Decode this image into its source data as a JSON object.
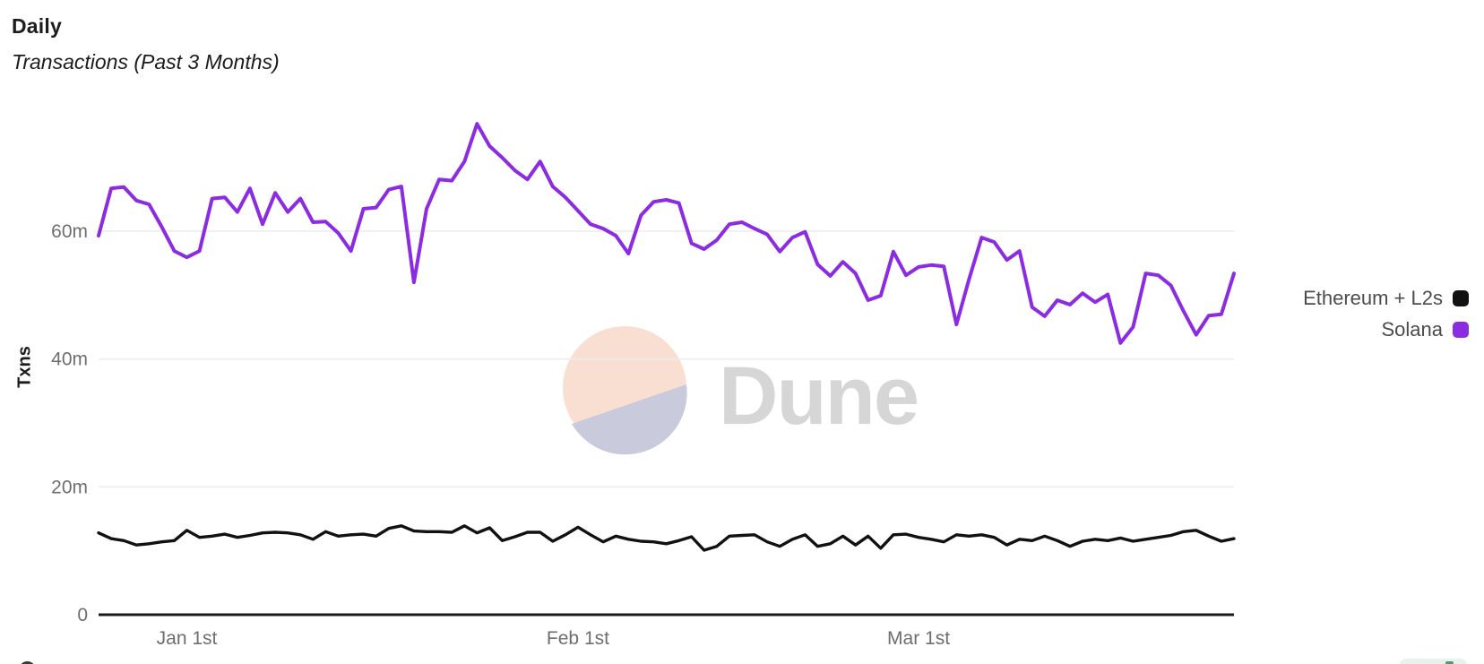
{
  "header": {
    "title": "Daily",
    "subtitle": "Transactions (Past 3 Months)"
  },
  "watermark": {
    "text": "Dune"
  },
  "legend": {
    "items": [
      {
        "label": "Ethereum + L2s",
        "color": "#111111"
      },
      {
        "label": "Solana",
        "color": "#8b2be2"
      }
    ]
  },
  "colors": {
    "grid": "#ececee",
    "axis_baseline": "#1a1a1a",
    "tick_text": "#6e6e6e",
    "watermark_text": "#d6d6d6",
    "watermark_peach": "#f9ded2",
    "watermark_lavender": "#c9cbdc",
    "badge_green_bg": "#e7f2ec",
    "badge_green_glyph": "#47a06b"
  },
  "chart_data": {
    "type": "line",
    "title": "Daily",
    "subtitle": "Transactions (Past 3 Months)",
    "ylabel": "Txns",
    "unit": "millions of daily transactions",
    "ylim": [
      0,
      80
    ],
    "grid": "horizontal",
    "legend_position": "right",
    "y_ticks": [
      {
        "value": 0,
        "label": "0"
      },
      {
        "value": 20,
        "label": "20m"
      },
      {
        "value": 40,
        "label": "40m"
      },
      {
        "value": 60,
        "label": "60m"
      }
    ],
    "x_ticks": [
      {
        "index": 7,
        "label": "Jan 1st"
      },
      {
        "index": 38,
        "label": "Feb 1st"
      },
      {
        "index": 65,
        "label": "Mar 1st"
      }
    ],
    "series": [
      {
        "name": "Ethereum + L2s",
        "color": "#111111",
        "values": [
          12.8,
          11.9,
          11.6,
          10.9,
          11.1,
          11.4,
          11.6,
          13.2,
          12.1,
          12.3,
          12.6,
          12.1,
          12.4,
          12.8,
          12.9,
          12.8,
          12.5,
          11.8,
          13.0,
          12.3,
          12.5,
          12.6,
          12.3,
          13.5,
          13.9,
          13.1,
          13.0,
          13.0,
          12.9,
          13.9,
          12.8,
          13.6,
          11.6,
          12.2,
          12.9,
          12.9,
          11.5,
          12.5,
          13.7,
          12.5,
          11.4,
          12.3,
          11.8,
          11.5,
          11.4,
          11.1,
          11.6,
          12.2,
          10.1,
          10.7,
          12.3,
          12.4,
          12.5,
          11.4,
          10.7,
          11.8,
          12.5,
          10.7,
          11.1,
          12.3,
          10.9,
          12.3,
          10.4,
          12.5,
          12.6,
          12.1,
          11.8,
          11.4,
          12.5,
          12.3,
          12.5,
          12.1,
          10.9,
          11.8,
          11.6,
          12.3,
          11.6,
          10.7,
          11.5,
          11.8,
          11.6,
          12.0,
          11.5,
          11.8,
          12.1,
          12.4,
          13.0,
          13.2,
          12.3,
          11.5,
          11.9
        ]
      },
      {
        "name": "Solana",
        "color": "#8b2be2",
        "values": [
          59.3,
          66.7,
          66.9,
          64.8,
          64.2,
          60.7,
          56.9,
          55.9,
          56.9,
          65.1,
          65.3,
          63.0,
          66.7,
          61.1,
          66.0,
          63.0,
          65.1,
          61.4,
          61.5,
          59.7,
          56.9,
          63.5,
          63.7,
          66.5,
          67.0,
          52.0,
          63.5,
          68.1,
          67.9,
          70.9,
          76.8,
          73.3,
          71.5,
          69.5,
          68.1,
          70.9,
          67.0,
          65.3,
          63.2,
          61.1,
          60.4,
          59.3,
          56.5,
          62.5,
          64.6,
          64.9,
          64.4,
          58.1,
          57.2,
          58.6,
          61.1,
          61.4,
          60.4,
          59.5,
          56.8,
          59.0,
          59.9,
          54.8,
          53.0,
          55.2,
          53.4,
          49.2,
          49.9,
          56.8,
          53.1,
          54.4,
          54.7,
          54.5,
          45.4,
          52.5,
          59.0,
          58.3,
          55.5,
          56.9,
          48.1,
          46.7,
          49.2,
          48.5,
          50.3,
          48.9,
          50.1,
          42.5,
          45.0,
          53.4,
          53.1,
          51.5,
          47.5,
          43.8,
          46.8,
          47.0,
          53.4
        ]
      }
    ]
  }
}
